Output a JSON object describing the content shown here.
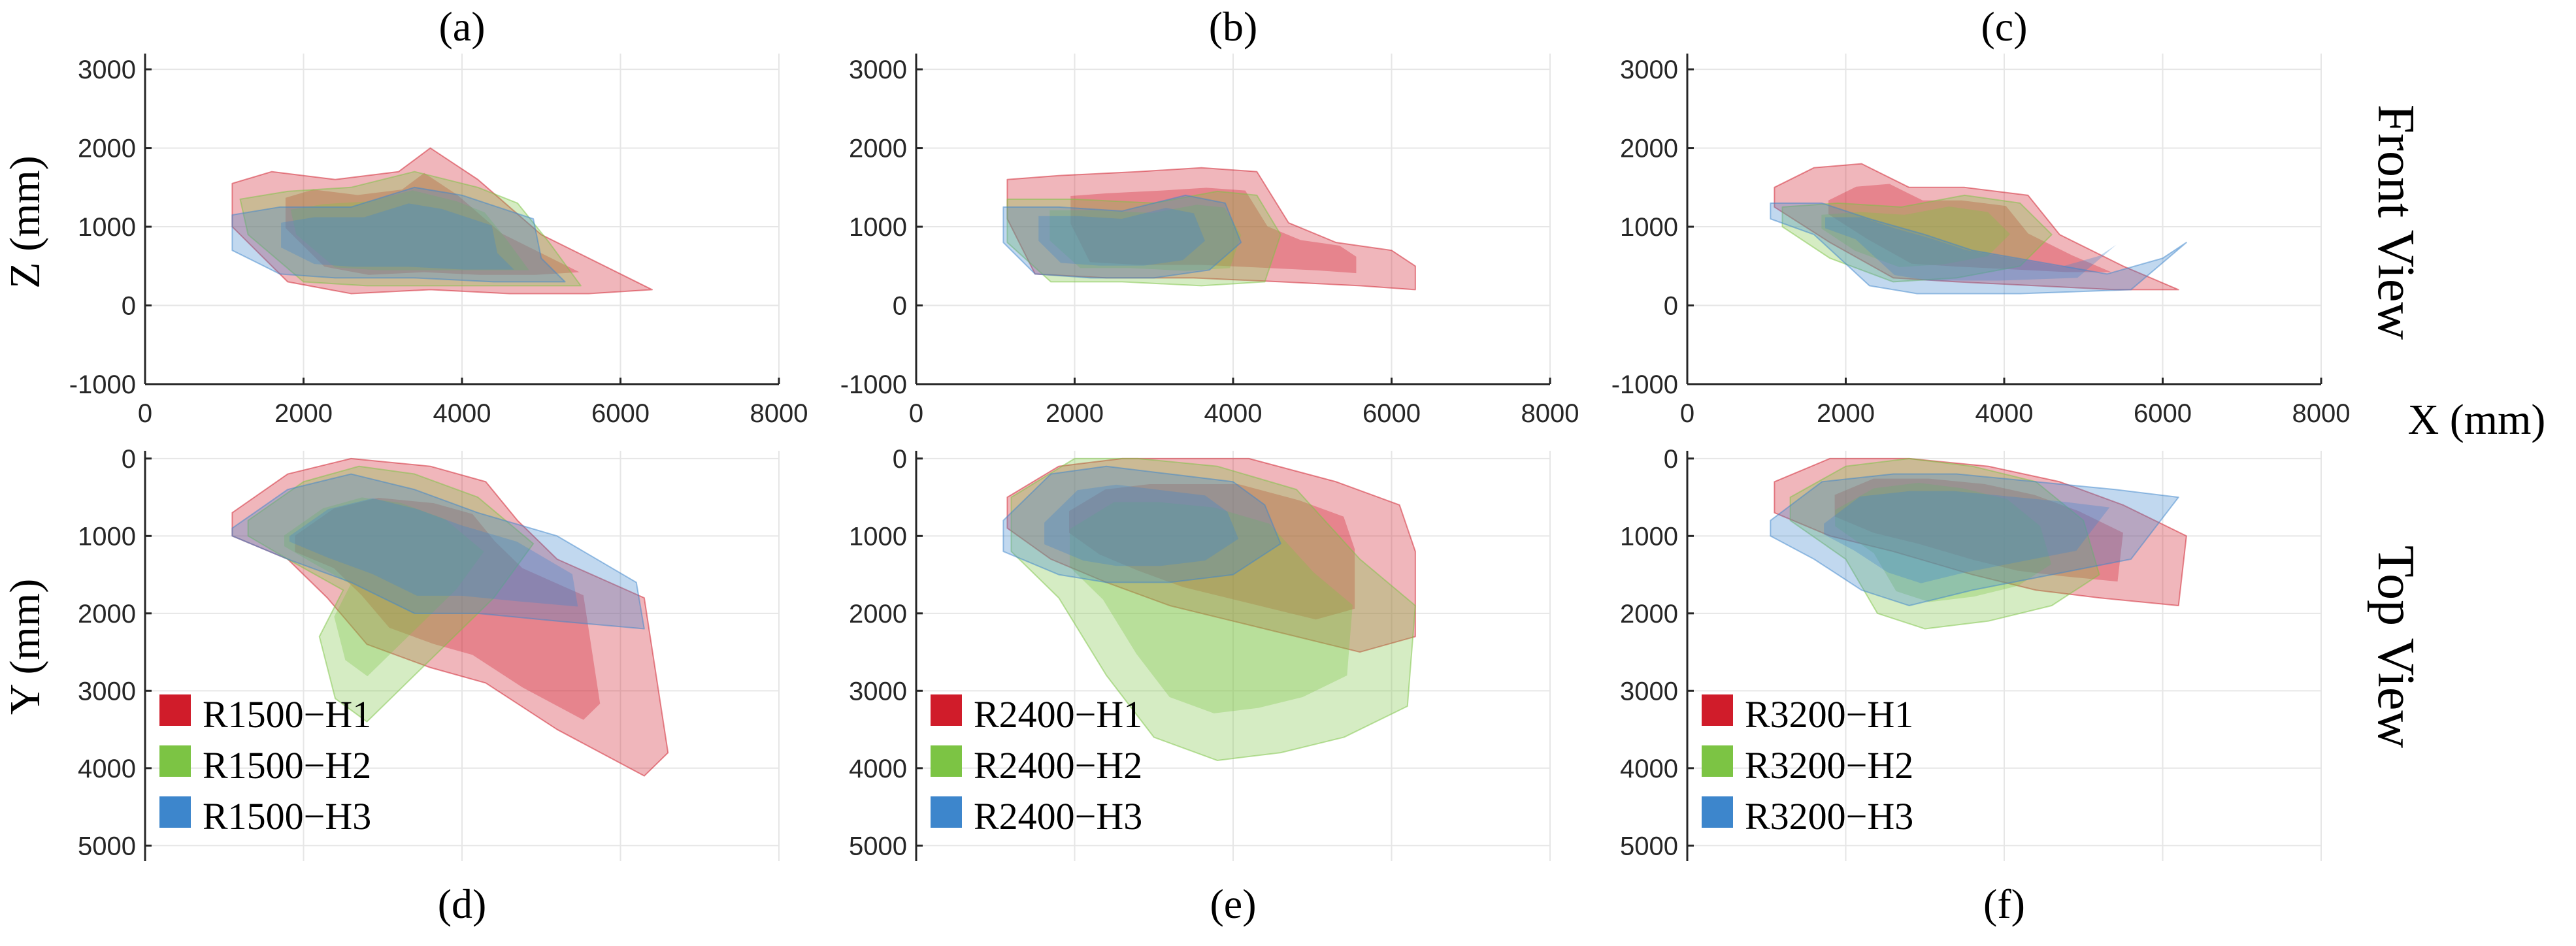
{
  "colors": {
    "H1": "#d01c2a",
    "H2": "#7cc444",
    "H3": "#3d86cc",
    "grid": "#e6e6e6",
    "axis": "#262626"
  },
  "labels": {
    "front_view": "Front View",
    "top_view": "Top View",
    "x_axis": "X (mm)",
    "z_axis": "Z (mm)",
    "y_axis": "Y (mm)"
  },
  "chart_data": [
    {
      "id": "a",
      "label": "(a)",
      "view": "front",
      "type": "area",
      "xlim": [
        0,
        8000
      ],
      "ylim": [
        -1000,
        3200
      ],
      "xticks": [
        "0",
        "2000",
        "4000",
        "6000",
        "8000"
      ],
      "yticks": [
        "-1000",
        "0",
        "1000",
        "2000",
        "3000"
      ],
      "series": [
        {
          "key": "H1",
          "x": [
            1100,
            1600,
            2400,
            3200,
            3600,
            4200,
            5000,
            6400,
            5600,
            4600,
            3600,
            2600,
            1800,
            1100
          ],
          "y": [
            1550,
            1700,
            1600,
            1700,
            2000,
            1600,
            900,
            200,
            150,
            150,
            200,
            150,
            300,
            1000
          ]
        },
        {
          "key": "H2",
          "x": [
            1200,
            1800,
            2600,
            3400,
            4200,
            4700,
            5100,
            5500,
            4800,
            3800,
            2800,
            2000,
            1300
          ],
          "y": [
            1350,
            1450,
            1500,
            1700,
            1500,
            1300,
            800,
            250,
            250,
            250,
            250,
            300,
            900
          ]
        },
        {
          "key": "H3",
          "x": [
            1100,
            1700,
            2600,
            3400,
            4000,
            4900,
            5000,
            5300,
            4400,
            3400,
            2400,
            1700,
            1100
          ],
          "y": [
            1150,
            1250,
            1250,
            1500,
            1400,
            1100,
            600,
            300,
            300,
            350,
            350,
            400,
            700
          ]
        }
      ]
    },
    {
      "id": "b",
      "label": "(b)",
      "view": "front",
      "type": "area",
      "xlim": [
        0,
        8000
      ],
      "ylim": [
        -1000,
        3200
      ],
      "xticks": [
        "0",
        "2000",
        "4000",
        "6000",
        "8000"
      ],
      "yticks": [
        "-1000",
        "0",
        "1000",
        "2000",
        "3000"
      ],
      "series": [
        {
          "key": "H1",
          "x": [
            1150,
            1800,
            2800,
            3600,
            4300,
            4700,
            5300,
            6000,
            6300,
            6300,
            5600,
            4600,
            3500,
            2400,
            1500,
            1150
          ],
          "y": [
            1600,
            1650,
            1700,
            1750,
            1700,
            1050,
            800,
            700,
            500,
            200,
            250,
            300,
            350,
            350,
            400,
            1100
          ]
        },
        {
          "key": "H2",
          "x": [
            1150,
            2000,
            3000,
            3800,
            4300,
            4600,
            4400,
            3600,
            2600,
            1700,
            1150
          ],
          "y": [
            1350,
            1350,
            1300,
            1450,
            1400,
            900,
            300,
            250,
            300,
            300,
            800
          ]
        },
        {
          "key": "H3",
          "x": [
            1100,
            1800,
            2600,
            3400,
            3900,
            4100,
            3700,
            3000,
            2200,
            1500,
            1100
          ],
          "y": [
            1250,
            1250,
            1200,
            1400,
            1300,
            800,
            450,
            350,
            350,
            400,
            800
          ]
        }
      ]
    },
    {
      "id": "c",
      "label": "(c)",
      "view": "front",
      "type": "area",
      "xlim": [
        0,
        8000
      ],
      "ylim": [
        -1000,
        3200
      ],
      "xticks": [
        "0",
        "2000",
        "4000",
        "6000",
        "8000"
      ],
      "yticks": [
        "-1000",
        "0",
        "1000",
        "2000",
        "3000"
      ],
      "series": [
        {
          "key": "H1",
          "x": [
            1100,
            1600,
            2200,
            2800,
            3500,
            4300,
            4700,
            5500,
            6200,
            5400,
            4400,
            3400,
            2600,
            1800,
            1100
          ],
          "y": [
            1500,
            1750,
            1800,
            1500,
            1500,
            1400,
            900,
            500,
            200,
            200,
            250,
            300,
            350,
            800,
            1250
          ]
        },
        {
          "key": "H2",
          "x": [
            1200,
            1900,
            2700,
            3500,
            4200,
            4600,
            4200,
            3400,
            2600,
            1800,
            1200
          ],
          "y": [
            1250,
            1300,
            1250,
            1400,
            1300,
            900,
            500,
            350,
            300,
            600,
            1000
          ]
        },
        {
          "key": "H3",
          "x": [
            1050,
            1700,
            2300,
            3000,
            3600,
            5300,
            6000,
            6300,
            5600,
            4200,
            2900,
            2300,
            1600,
            1050
          ],
          "y": [
            1300,
            1300,
            1100,
            900,
            700,
            400,
            600,
            800,
            200,
            150,
            150,
            250,
            900,
            1100
          ]
        }
      ]
    },
    {
      "id": "d",
      "label": "(d)",
      "view": "top",
      "type": "area",
      "xlim": [
        0,
        8000
      ],
      "ylim": [
        -100,
        5200
      ],
      "xticks": [],
      "yticks": [
        "0",
        "1000",
        "2000",
        "3000",
        "4000",
        "5000"
      ],
      "legend": [
        "R1500−H1",
        "R1500−H2",
        "R1500−H3"
      ],
      "series": [
        {
          "key": "H1",
          "x": [
            1100,
            1800,
            2600,
            3600,
            4300,
            4700,
            5200,
            6300,
            6600,
            6300,
            5200,
            4300,
            3600,
            2800,
            2300,
            1800,
            1100
          ],
          "y": [
            700,
            200,
            0,
            100,
            300,
            800,
            1300,
            1800,
            3800,
            4100,
            3500,
            2900,
            2700,
            2400,
            1800,
            1300,
            1000
          ]
        },
        {
          "key": "H2",
          "x": [
            1300,
            2000,
            2700,
            3400,
            4200,
            4900,
            4400,
            3600,
            2800,
            2400,
            2200,
            2500,
            1800,
            1300
          ],
          "y": [
            800,
            300,
            100,
            200,
            500,
            1100,
            1800,
            2600,
            3400,
            3100,
            2300,
            1700,
            1300,
            1000
          ]
        },
        {
          "key": "H3",
          "x": [
            1100,
            1800,
            2600,
            3400,
            4200,
            5200,
            6200,
            6300,
            5200,
            4200,
            3400,
            2600,
            1800,
            1100
          ],
          "y": [
            900,
            400,
            200,
            400,
            700,
            1000,
            1600,
            2200,
            2100,
            2000,
            2000,
            1600,
            1300,
            1000
          ]
        }
      ]
    },
    {
      "id": "e",
      "label": "(e)",
      "view": "top",
      "type": "area",
      "xlim": [
        0,
        8000
      ],
      "ylim": [
        -100,
        5200
      ],
      "xticks": [],
      "yticks": [
        "0",
        "1000",
        "2000",
        "3000",
        "4000",
        "5000"
      ],
      "legend": [
        "R2400−H1",
        "R2400−H2",
        "R2400−H3"
      ],
      "series": [
        {
          "key": "H1",
          "x": [
            1150,
            1800,
            2600,
            3400,
            4200,
            5300,
            6100,
            6300,
            6300,
            5600,
            4800,
            4000,
            3200,
            2400,
            1700,
            1150
          ],
          "y": [
            500,
            100,
            0,
            0,
            0,
            300,
            600,
            1200,
            2300,
            2500,
            2300,
            2100,
            1900,
            1600,
            1300,
            900
          ]
        },
        {
          "key": "H2",
          "x": [
            1200,
            2000,
            2800,
            3800,
            4800,
            5600,
            6300,
            6200,
            5400,
            4600,
            3800,
            3000,
            2400,
            1800,
            1200
          ],
          "y": [
            500,
            0,
            0,
            100,
            400,
            1300,
            1900,
            3200,
            3600,
            3800,
            3900,
            3600,
            2800,
            1800,
            1200
          ]
        },
        {
          "key": "H3",
          "x": [
            1100,
            1700,
            2400,
            3200,
            4000,
            4400,
            4600,
            4000,
            3200,
            2400,
            1800,
            1100
          ],
          "y": [
            800,
            200,
            100,
            200,
            300,
            600,
            1100,
            1500,
            1600,
            1600,
            1500,
            1200
          ]
        }
      ]
    },
    {
      "id": "f",
      "label": "(f)",
      "view": "top",
      "type": "area",
      "xlim": [
        0,
        8000
      ],
      "ylim": [
        -100,
        5200
      ],
      "xticks": [],
      "yticks": [
        "0",
        "1000",
        "2000",
        "3000",
        "4000",
        "5000"
      ],
      "legend": [
        "R3200−H1",
        "R3200−H2",
        "R3200−H3"
      ],
      "series": [
        {
          "key": "H1",
          "x": [
            1100,
            1800,
            2800,
            3800,
            4700,
            5500,
            6300,
            6200,
            5200,
            4400,
            3600,
            2600,
            1800,
            1100
          ],
          "y": [
            300,
            0,
            0,
            100,
            300,
            600,
            1000,
            1900,
            1800,
            1700,
            1500,
            1200,
            1000,
            700
          ]
        },
        {
          "key": "H2",
          "x": [
            1300,
            2000,
            2800,
            3600,
            4400,
            5000,
            5200,
            4600,
            3800,
            3000,
            2400,
            2000,
            1300
          ],
          "y": [
            500,
            100,
            0,
            100,
            300,
            800,
            1500,
            1900,
            2100,
            2200,
            2000,
            1300,
            800
          ]
        },
        {
          "key": "H3",
          "x": [
            1050,
            1700,
            2600,
            3400,
            4400,
            5400,
            6200,
            5600,
            4600,
            3600,
            2800,
            2200,
            1600,
            1050
          ],
          "y": [
            800,
            300,
            200,
            200,
            300,
            400,
            500,
            1300,
            1500,
            1700,
            1900,
            1700,
            1300,
            1000
          ]
        }
      ]
    }
  ]
}
